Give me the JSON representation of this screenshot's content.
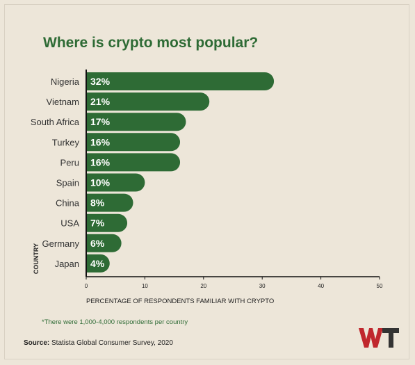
{
  "title": "Where is crypto most popular?",
  "footnote": "*There were 1,000-4,000 respondents per country",
  "source_label": "Source:",
  "source_text": "Statista Global Consumer Survey, 2020",
  "logo_text": "WT",
  "colors": {
    "bar": "#2e6b35",
    "title": "#2e6b35",
    "background": "#ede6d9",
    "logo_w": "#c0272d",
    "logo_t": "#333333"
  },
  "chart_data": {
    "type": "bar",
    "orientation": "horizontal",
    "categories": [
      "Nigeria",
      "Vietnam",
      "South Africa",
      "Turkey",
      "Peru",
      "Spain",
      "China",
      "USA",
      "Germany",
      "Japan"
    ],
    "values": [
      32,
      21,
      17,
      16,
      16,
      10,
      8,
      7,
      6,
      4
    ],
    "data_labels": [
      "32%",
      "21%",
      "17%",
      "16%",
      "16%",
      "10%",
      "8%",
      "7%",
      "6%",
      "4%"
    ],
    "xlabel": "PERCENTAGE OF RESPONDENTS FAMILIAR WITH CRYPTO",
    "ylabel": "COUNTRY",
    "xlim": [
      0,
      50
    ],
    "xticks": [
      0,
      10,
      20,
      30,
      40,
      50
    ],
    "grid": false
  }
}
